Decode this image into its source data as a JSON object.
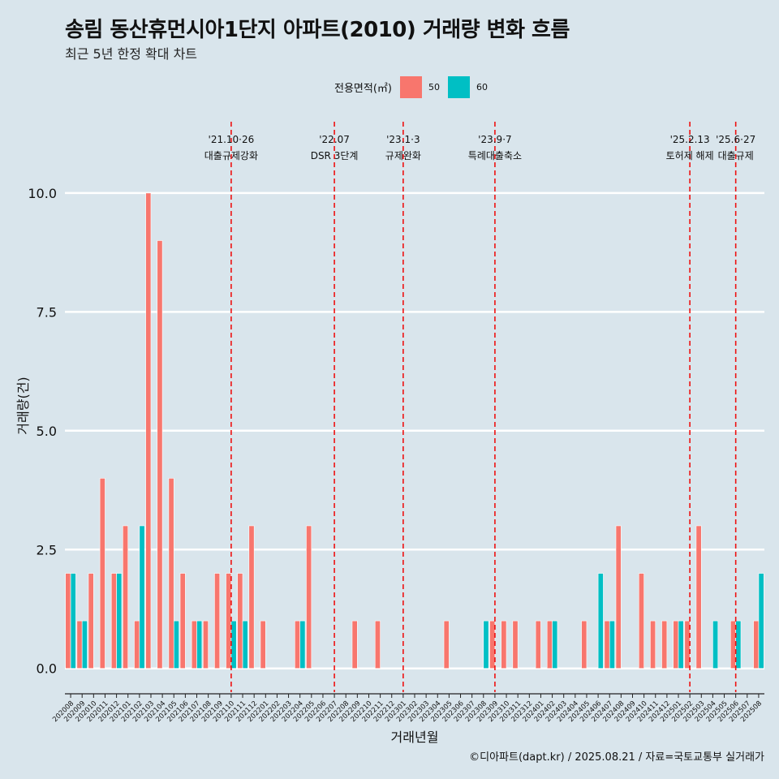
{
  "header": {
    "title": "송림 동산휴먼시아1단지 아파트(2010) 거래량 변화 흐름",
    "subtitle": "최근 5년 한정 확대 차트"
  },
  "legend": {
    "title": "전용면적(㎡)",
    "items": [
      {
        "label": "50",
        "color": "#F8766D"
      },
      {
        "label": "60",
        "color": "#00BFC4"
      }
    ]
  },
  "caption": "©디아파트(dapt.kr) / 2025.08.21 / 자료=국토교통부 실거래가",
  "chart_data": {
    "type": "bar",
    "title": "송림 동산휴먼시아1단지 아파트(2010) 거래량 변화 흐름",
    "xlabel": "거래년월",
    "ylabel": "거래량(건)",
    "ylim": [
      -0.5,
      11.5
    ],
    "yticks": [
      0,
      2.5,
      5,
      7.5,
      10
    ],
    "ytick_labels": [
      "0.0",
      "2.5",
      "5.0",
      "7.5",
      "10.0"
    ],
    "categories": [
      "202008",
      "202009",
      "202010",
      "202011",
      "202012",
      "202101",
      "202102",
      "202103",
      "202104",
      "202105",
      "202106",
      "202107",
      "202108",
      "202109",
      "202110",
      "202111",
      "202112",
      "202201",
      "202202",
      "202203",
      "202204",
      "202205",
      "202206",
      "202207",
      "202208",
      "202209",
      "202210",
      "202211",
      "202212",
      "202301",
      "202302",
      "202303",
      "202304",
      "202305",
      "202306",
      "202307",
      "202308",
      "202309",
      "202310",
      "202311",
      "202312",
      "202401",
      "202402",
      "202403",
      "202404",
      "202405",
      "202406",
      "202407",
      "202408",
      "202409",
      "202410",
      "202411",
      "202412",
      "202501",
      "202502",
      "202503",
      "202504",
      "202505",
      "202506",
      "202507",
      "202508"
    ],
    "series": [
      {
        "name": "50",
        "color": "#F8766D",
        "values": [
          2,
          1,
          2,
          4,
          2,
          3,
          1,
          10,
          9,
          4,
          2,
          1,
          1,
          2,
          2,
          2,
          3,
          1,
          0,
          0,
          1,
          3,
          0,
          0,
          0,
          1,
          0,
          1,
          0,
          0,
          0,
          0,
          0,
          1,
          0,
          0,
          0,
          1,
          1,
          1,
          0,
          1,
          1,
          0,
          0,
          1,
          0,
          1,
          3,
          0,
          2,
          1,
          1,
          1,
          1,
          3,
          0,
          0,
          1,
          0,
          1
        ]
      },
      {
        "name": "60",
        "color": "#00BFC4",
        "values": [
          2,
          1,
          0,
          0,
          2,
          0,
          3,
          0,
          0,
          1,
          0,
          1,
          0,
          0,
          1,
          1,
          0,
          0,
          0,
          0,
          1,
          0,
          0,
          0,
          0,
          0,
          0,
          0,
          0,
          0,
          0,
          0,
          0,
          0,
          0,
          0,
          1,
          0,
          0,
          0,
          0,
          0,
          1,
          0,
          0,
          0,
          2,
          1,
          0,
          0,
          0,
          0,
          0,
          1,
          0,
          0,
          1,
          0,
          1,
          0,
          2
        ]
      }
    ],
    "annotations": [
      {
        "category": "202110",
        "date": "'21.10·26",
        "label": "대출규제강화"
      },
      {
        "category": "202207",
        "date": "'22.07",
        "label": "DSR 3단계"
      },
      {
        "category": "202301",
        "date": "'23.1·3",
        "label": "규제완화"
      },
      {
        "category": "202309",
        "date": "'23.9·7",
        "label": "특례대출축소"
      },
      {
        "category": "202502",
        "date": "'25.2.13",
        "label": "토허제 해제"
      },
      {
        "category": "202506",
        "date": "'25.6·27",
        "label": "대출규제"
      }
    ]
  }
}
